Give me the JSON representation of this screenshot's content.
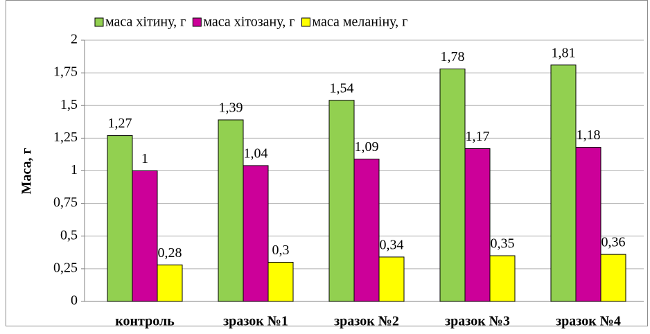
{
  "chart_data": {
    "type": "bar",
    "y_label": "Маса, г",
    "categories": [
      "контроль",
      "зразок №1",
      "зразок №2",
      "зразок №3",
      "зразок №4"
    ],
    "series": [
      {
        "name": "маса хітину, г",
        "color": "#92d050",
        "values": [
          1.27,
          1.39,
          1.54,
          1.78,
          1.81
        ],
        "value_labels": [
          "1,27",
          "1,39",
          "1,54",
          "1,78",
          "1,81"
        ]
      },
      {
        "name": "маса хітозану, г",
        "color": "#cc0099",
        "values": [
          1,
          1.04,
          1.09,
          1.17,
          1.18
        ],
        "value_labels": [
          "1",
          "1,04",
          "1,09",
          "1,17",
          "1,18"
        ]
      },
      {
        "name": "маса меланіну, г",
        "color": "#ffff00",
        "values": [
          0.28,
          0.3,
          0.34,
          0.35,
          0.36
        ],
        "value_labels": [
          "0,28",
          "0,3",
          "0,34",
          "0,35",
          "0,36"
        ]
      }
    ],
    "ylim": [
      0,
      2
    ],
    "yticks": [
      0,
      {
        "value": 0.25,
        "label": "0,25"
      },
      {
        "value": 0.5,
        "label": "0,5"
      },
      {
        "value": 0.75,
        "label": "0,75"
      },
      1,
      {
        "value": 1.25,
        "label": "1,25"
      },
      {
        "value": 1.5,
        "label": "1,5"
      },
      {
        "value": 1.75,
        "label": "1,75"
      },
      2
    ],
    "grid": true,
    "legend": "top"
  }
}
